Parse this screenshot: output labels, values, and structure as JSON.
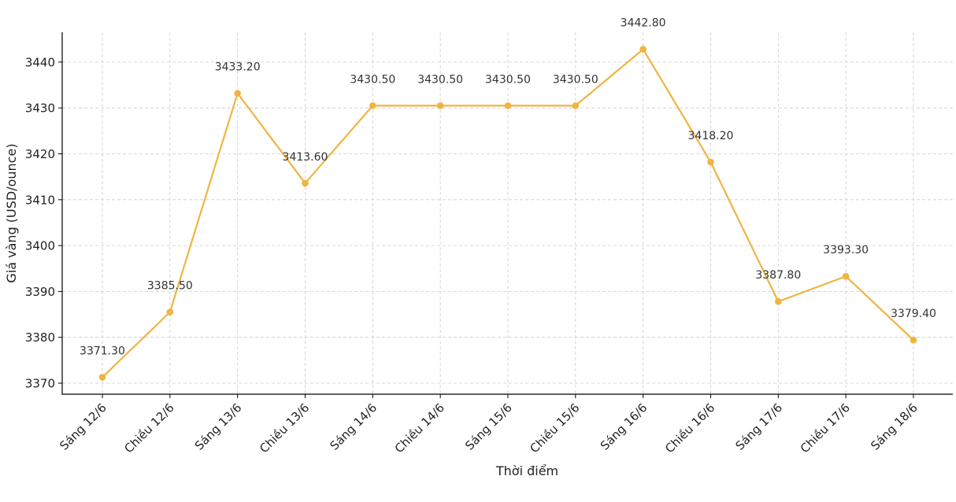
{
  "chart_data": {
    "type": "line",
    "title": "",
    "xlabel": "Thời điểm",
    "ylabel": "Giá vàng (USD/ounce)",
    "categories": [
      "Sáng 12/6",
      "Chiều 12/6",
      "Sáng 13/6",
      "Chiều 13/6",
      "Sáng 14/6",
      "Chiều 14/6",
      "Sáng 15/6",
      "Chiều 15/6",
      "Sáng 16/6",
      "Chiều 16/6",
      "Sáng 17/6",
      "Chiều 17/6",
      "Sáng 18/6"
    ],
    "series": [
      {
        "values": [
          3371.3,
          3385.5,
          3433.2,
          3413.6,
          3430.5,
          3430.5,
          3430.5,
          3430.5,
          3442.8,
          3418.2,
          3387.8,
          3393.3,
          3379.4
        ],
        "data_labels": [
          "3371.30",
          "3385.50",
          "3433.20",
          "3413.60",
          "3430.50",
          "3430.50",
          "3430.50",
          "3430.50",
          "3442.80",
          "3418.20",
          "3387.80",
          "3393.30",
          "3379.40"
        ],
        "color": "#f0b442"
      }
    ],
    "yticks": [
      3370,
      3380,
      3390,
      3400,
      3410,
      3420,
      3430,
      3440
    ],
    "ylim": [
      3367.6,
      3446.5
    ],
    "grid": true
  }
}
